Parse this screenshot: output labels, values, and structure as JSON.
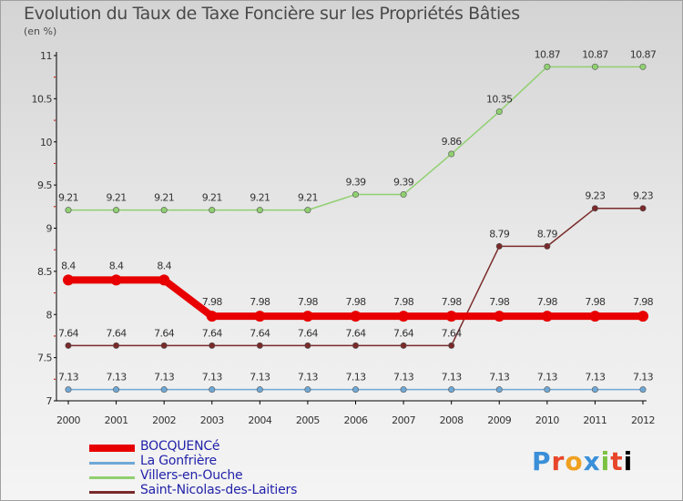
{
  "header": {
    "title": "Evolution du Taux de Taxe Foncière sur les Propriétés Bâties",
    "subtitle": "(en %)"
  },
  "logo": {
    "text": "Proxiti"
  },
  "chart_data": {
    "type": "line",
    "title": "Evolution du Taux de Taxe Foncière sur les Propriétés Bâties",
    "subtitle": "(en %)",
    "x": [
      "2000",
      "2001",
      "2002",
      "2003",
      "2004",
      "2005",
      "2006",
      "2007",
      "2008",
      "2009",
      "2010",
      "2011",
      "2012"
    ],
    "ylim": [
      7,
      11
    ],
    "yticks": [
      7,
      7.5,
      8,
      8.5,
      9,
      9.5,
      10,
      10.5,
      11
    ],
    "ytick_labels": [
      "7",
      "7.5",
      "8",
      "8.5",
      "9",
      "9.5",
      "10",
      "10.5",
      "11"
    ],
    "grid": false,
    "legend": "bottom-left",
    "series": [
      {
        "name": "BOCQUENCé",
        "color": "#e80000",
        "values": [
          8.4,
          8.4,
          8.4,
          7.98,
          7.98,
          7.98,
          7.98,
          7.98,
          7.98,
          7.98,
          7.98,
          7.98,
          7.98
        ],
        "labels": [
          "8.4",
          "8.4",
          "8.4",
          "7.98",
          "7.98",
          "7.98",
          "7.98",
          "7.98",
          "7.98",
          "7.98",
          "7.98",
          "7.98",
          "7.98"
        ]
      },
      {
        "name": "La Gonfrière",
        "color": "#6fa8d6",
        "values": [
          7.13,
          7.13,
          7.13,
          7.13,
          7.13,
          7.13,
          7.13,
          7.13,
          7.13,
          7.13,
          7.13,
          7.13,
          7.13
        ],
        "labels": [
          "7.13",
          "7.13",
          "7.13",
          "7.13",
          "7.13",
          "7.13",
          "7.13",
          "7.13",
          "7.13",
          "7.13",
          "7.13",
          "7.13",
          "7.13"
        ]
      },
      {
        "name": "Villers-en-Ouche",
        "color": "#90d070",
        "values": [
          9.21,
          9.21,
          9.21,
          9.21,
          9.21,
          9.21,
          9.39,
          9.39,
          9.86,
          10.35,
          10.87,
          10.87,
          10.87
        ],
        "labels": [
          "9.21",
          "9.21",
          "9.21",
          "9.21",
          "9.21",
          "9.21",
          "9.39",
          "9.39",
          "9.86",
          "10.35",
          "10.87",
          "10.87",
          "10.87"
        ]
      },
      {
        "name": "Saint-Nicolas-des-Laitiers",
        "color": "#7a2a2a",
        "values": [
          7.64,
          7.64,
          7.64,
          7.64,
          7.64,
          7.64,
          7.64,
          7.64,
          7.64,
          8.79,
          8.79,
          9.23,
          9.23
        ],
        "labels": [
          "7.64",
          "7.64",
          "7.64",
          "7.64",
          "7.64",
          "7.64",
          "7.64",
          "7.64",
          "7.64",
          "8.79",
          "8.79",
          "9.23",
          "9.23"
        ]
      }
    ]
  }
}
